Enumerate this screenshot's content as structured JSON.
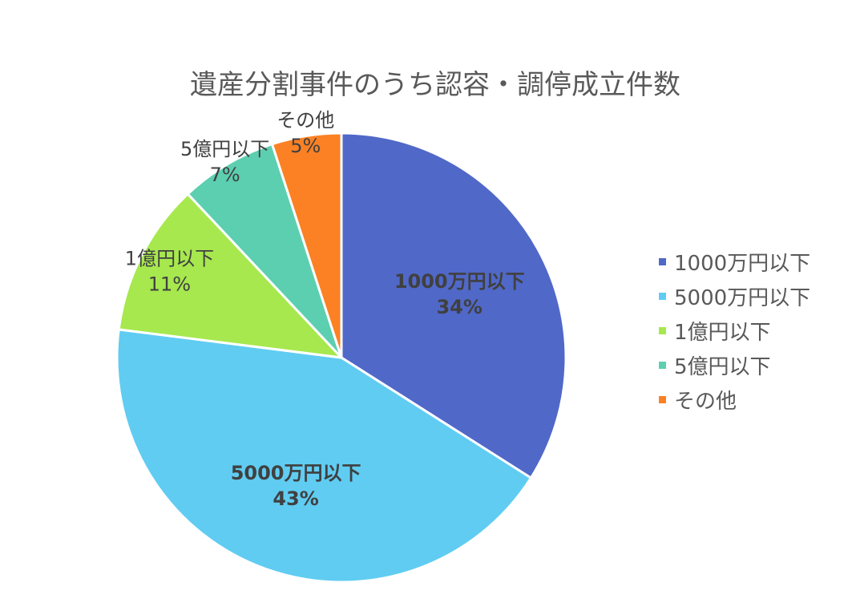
{
  "chart_data": {
    "type": "pie",
    "title": "遺産分割事件のうち認容・調停成立件数",
    "categories": [
      "1000万円以下",
      "5000万円以下",
      "1億円以下",
      "5億円以下",
      "その他"
    ],
    "values": [
      34,
      43,
      11,
      7,
      5
    ],
    "data_labels": [
      "34%",
      "43%",
      "11%",
      "7%",
      "5%"
    ],
    "colors": [
      "#5068C8",
      "#60CCF2",
      "#A6E84E",
      "#5CCFB0",
      "#FB8124"
    ],
    "legend_position": "right"
  }
}
